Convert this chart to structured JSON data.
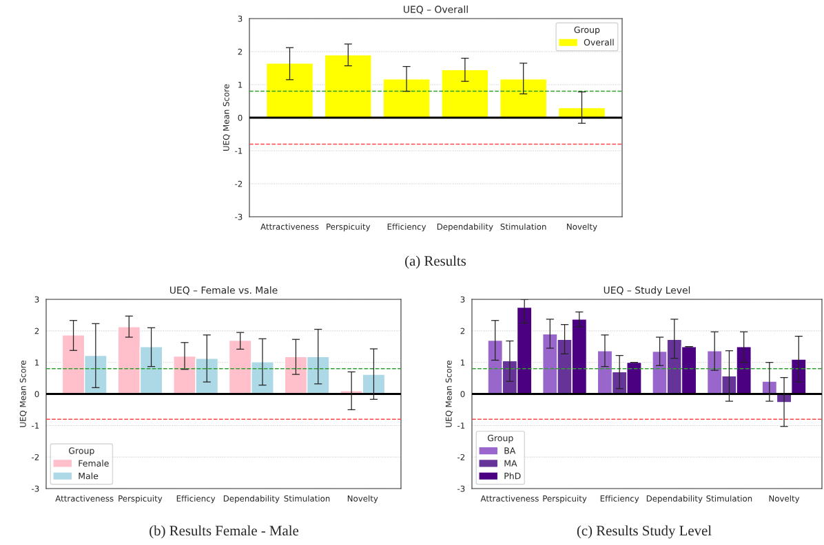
{
  "chart_data": [
    {
      "type": "bar",
      "title": "UEQ – Overall",
      "ylabel": "UEQ Mean Score",
      "legend_title": "Group",
      "legend": "top right",
      "grid": "y",
      "categories": [
        "Attractiveness",
        "Perspicuity",
        "Efficiency",
        "Dependability",
        "Stimulation",
        "Novelty"
      ],
      "series": [
        {
          "name": "Overall",
          "color": "#ffff00",
          "values": [
            1.65,
            1.9,
            1.17,
            1.45,
            1.17,
            0.3
          ],
          "errors": [
            [
              1.15,
              2.12
            ],
            [
              1.57,
              2.23
            ],
            [
              0.8,
              1.55
            ],
            [
              1.1,
              1.8
            ],
            [
              0.72,
              1.65
            ],
            [
              -0.17,
              0.78
            ]
          ]
        }
      ],
      "ylim": [
        -3,
        3
      ],
      "yticks": [
        -3,
        -2,
        -1,
        0,
        1,
        2,
        3
      ],
      "ref_lines": [
        {
          "axis": "y",
          "value": 0,
          "color": "#000000",
          "line_style": "solid"
        },
        {
          "axis": "y",
          "value": 0.8,
          "color": "#2ca02c",
          "line_style": "dashed"
        },
        {
          "axis": "y",
          "value": -0.8,
          "color": "#ff4444",
          "line_style": "dashed"
        }
      ],
      "annotations": [
        "(a) Results"
      ]
    },
    {
      "type": "bar",
      "title": "UEQ – Female vs. Male",
      "ylabel": "UEQ Mean Score",
      "legend_title": "Group",
      "legend": "bottom left",
      "grid": "y",
      "categories": [
        "Attractiveness",
        "Perspicuity",
        "Efficiency",
        "Dependability",
        "Stimulation",
        "Novelty"
      ],
      "series": [
        {
          "name": "Female",
          "color": "#ffc0cb",
          "values": [
            1.87,
            2.13,
            1.2,
            1.7,
            1.18,
            0.1
          ],
          "errors": [
            [
              1.38,
              2.33
            ],
            [
              1.8,
              2.47
            ],
            [
              0.78,
              1.63
            ],
            [
              1.42,
              1.95
            ],
            [
              0.62,
              1.73
            ],
            [
              -0.5,
              0.7
            ]
          ]
        },
        {
          "name": "Male",
          "color": "#add8e6",
          "values": [
            1.22,
            1.5,
            1.13,
            1.02,
            1.18,
            0.62
          ],
          "errors": [
            [
              0.2,
              2.23
            ],
            [
              0.87,
              2.1
            ],
            [
              0.38,
              1.87
            ],
            [
              0.28,
              1.75
            ],
            [
              0.32,
              2.05
            ],
            [
              -0.17,
              1.43
            ]
          ]
        }
      ],
      "ylim": [
        -3,
        3
      ],
      "yticks": [
        -3,
        -2,
        -1,
        0,
        1,
        2,
        3
      ],
      "ref_lines": [
        {
          "axis": "y",
          "value": 0,
          "color": "#000000",
          "line_style": "solid"
        },
        {
          "axis": "y",
          "value": 0.8,
          "color": "#2ca02c",
          "line_style": "dashed"
        },
        {
          "axis": "y",
          "value": -0.8,
          "color": "#ff4444",
          "line_style": "dashed"
        }
      ],
      "annotations": [
        "(b) Results Female - Male"
      ]
    },
    {
      "type": "bar",
      "title": "UEQ – Study Level",
      "ylabel": "UEQ Mean Score",
      "legend_title": "Group",
      "legend": "bottom left",
      "grid": "y",
      "categories": [
        "Attractiveness",
        "Perspicuity",
        "Efficiency",
        "Dependability",
        "Stimulation",
        "Novelty"
      ],
      "series": [
        {
          "name": "BA",
          "color": "#9966cc",
          "values": [
            1.7,
            1.9,
            1.37,
            1.35,
            1.37,
            0.4
          ],
          "errors": [
            [
              1.07,
              2.33
            ],
            [
              1.45,
              2.37
            ],
            [
              0.87,
              1.87
            ],
            [
              0.9,
              1.8
            ],
            [
              0.75,
              1.97
            ],
            [
              -0.23,
              1.0
            ]
          ]
        },
        {
          "name": "MA",
          "color": "#663399",
          "values": [
            1.05,
            1.73,
            0.7,
            1.73,
            0.57,
            -0.27
          ],
          "errors": [
            [
              0.4,
              1.68
            ],
            [
              1.27,
              2.2
            ],
            [
              0.17,
              1.22
            ],
            [
              1.13,
              2.37
            ],
            [
              -0.23,
              1.37
            ],
            [
              -1.03,
              0.52
            ]
          ]
        },
        {
          "name": "PhD",
          "color": "#4b0082",
          "values": [
            2.75,
            2.37,
            1.0,
            1.5,
            1.5,
            1.1
          ],
          "errors": [
            [
              2.25,
              3.0
            ],
            [
              2.13,
              2.6
            ],
            0,
            0,
            [
              1.0,
              1.97
            ],
            [
              0.38,
              1.83
            ]
          ]
        }
      ],
      "ylim": [
        -3,
        3
      ],
      "yticks": [
        -3,
        -2,
        -1,
        0,
        1,
        2,
        3
      ],
      "ref_lines": [
        {
          "axis": "y",
          "value": 0,
          "color": "#000000",
          "line_style": "solid"
        },
        {
          "axis": "y",
          "value": 0.8,
          "color": "#2ca02c",
          "line_style": "dashed"
        },
        {
          "axis": "y",
          "value": -0.8,
          "color": "#ff4444",
          "line_style": "dashed"
        }
      ],
      "annotations": [
        "(c) Results Study Level"
      ]
    }
  ]
}
